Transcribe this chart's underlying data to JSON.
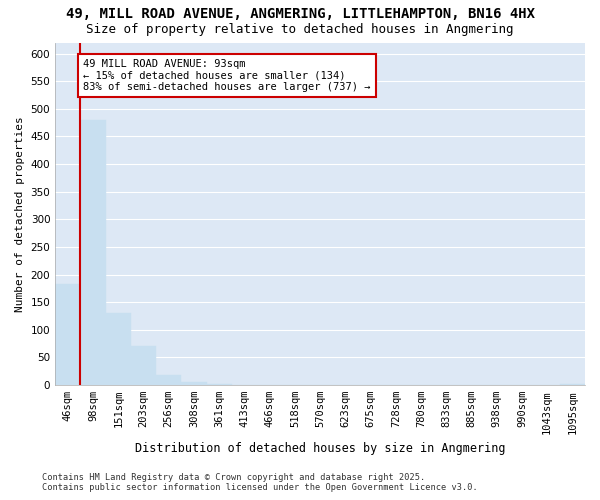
{
  "title_line1": "49, MILL ROAD AVENUE, ANGMERING, LITTLEHAMPTON, BN16 4HX",
  "title_line2": "Size of property relative to detached houses in Angmering",
  "xlabel": "Distribution of detached houses by size in Angmering",
  "ylabel": "Number of detached properties",
  "footer_line1": "Contains HM Land Registry data © Crown copyright and database right 2025.",
  "footer_line2": "Contains public sector information licensed under the Open Government Licence v3.0.",
  "categories": [
    "46sqm",
    "98sqm",
    "151sqm",
    "203sqm",
    "256sqm",
    "308sqm",
    "361sqm",
    "413sqm",
    "466sqm",
    "518sqm",
    "570sqm",
    "623sqm",
    "675sqm",
    "728sqm",
    "780sqm",
    "833sqm",
    "885sqm",
    "938sqm",
    "990sqm",
    "1043sqm",
    "1095sqm"
  ],
  "values": [
    183,
    479,
    130,
    70,
    18,
    5,
    2,
    0,
    0,
    0,
    0,
    0,
    0,
    0,
    0,
    0,
    0,
    0,
    0,
    0,
    2
  ],
  "bar_color": "#c8dff0",
  "bar_edge_color": "#c8dff0",
  "annotation_text": "49 MILL ROAD AVENUE: 93sqm\n← 15% of detached houses are smaller (134)\n83% of semi-detached houses are larger (737) →",
  "annotation_box_color": "#ffffff",
  "annotation_edge_color": "#cc0000",
  "vline_color": "#cc0000",
  "vline_x": 0.5,
  "ylim": [
    0,
    620
  ],
  "yticks": [
    0,
    50,
    100,
    150,
    200,
    250,
    300,
    350,
    400,
    450,
    500,
    550,
    600
  ],
  "background_color": "#dde8f5",
  "grid_color": "#ffffff",
  "fig_background": "#ffffff",
  "title_fontsize": 10,
  "subtitle_fontsize": 9,
  "axis_label_fontsize": 8.5,
  "tick_fontsize": 7.5,
  "ylabel_fontsize": 8
}
